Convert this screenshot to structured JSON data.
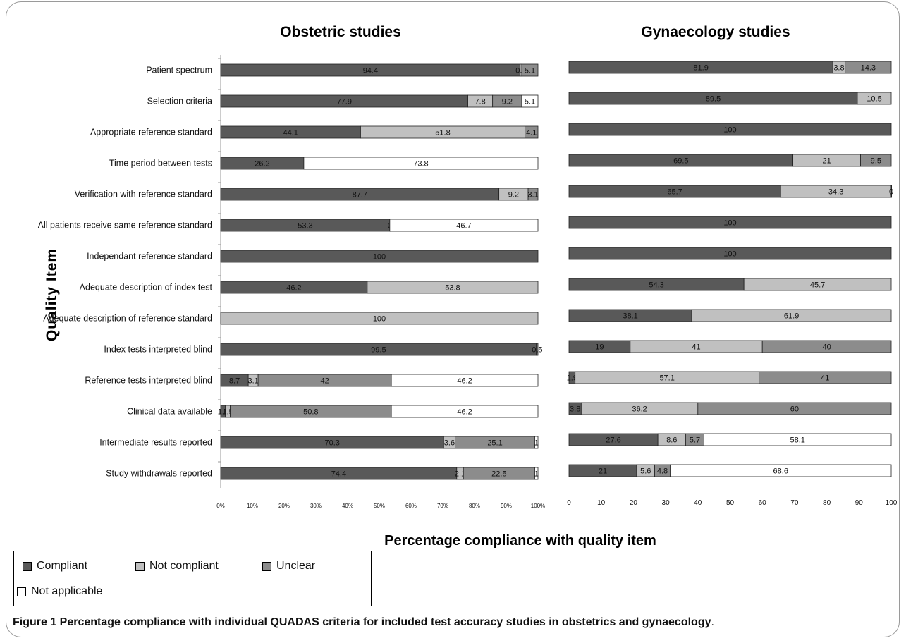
{
  "caption": {
    "label": "Figure 1",
    "text": " Percentage compliance with individual QUADAS criteria for included test accuracy studies in obstetrics and gynaecology",
    "end": "."
  },
  "y_axis_title": "Quality Item",
  "x_axis_title": "Percentage compliance with quality item",
  "legend": [
    {
      "name": "Compliant",
      "color": "#595959"
    },
    {
      "name": "Not compliant",
      "color": "#c0c0c0"
    },
    {
      "name": "Unclear",
      "color": "#8c8c8c"
    },
    {
      "name": "Not applicable",
      "color": "#ffffff"
    }
  ],
  "chart_data": [
    {
      "type": "bar",
      "orientation": "horizontal",
      "stacked": true,
      "title": "Obstetric studies",
      "xlim": [
        0,
        100
      ],
      "ticks": [
        "0%",
        "10%",
        "20%",
        "30%",
        "40%",
        "50%",
        "60%",
        "70%",
        "80%",
        "90%",
        "100%"
      ],
      "categories": [
        "Patient spectrum",
        "Selection criteria",
        "Appropriate reference standard",
        "Time period between tests",
        "Verification with reference standard",
        "All patients receive same reference standard",
        "Independant reference standard",
        "Adequate description of index test",
        "Adequate description of reference standard",
        "Index tests interpreted blind",
        "Reference tests interpreted blind",
        "Clinical data available",
        "Intermediate results reported",
        "Study withdrawals reported"
      ],
      "series": [
        {
          "name": "Compliant",
          "values": [
            94.4,
            77.9,
            44.1,
            26.2,
            87.7,
            53.3,
            100,
            46.2,
            0,
            99.5,
            8.7,
            1.5,
            70.3,
            74.4
          ]
        },
        {
          "name": "Not compliant",
          "values": [
            0.5,
            7.8,
            51.8,
            0,
            9.2,
            0,
            0,
            53.8,
            100,
            0,
            3.1,
            1.5,
            3.6,
            2.1
          ]
        },
        {
          "name": "Unclear",
          "values": [
            5.1,
            9.2,
            4.1,
            0,
            3.1,
            0,
            0,
            0,
            0,
            0.5,
            42,
            50.8,
            25.1,
            22.5
          ]
        },
        {
          "name": "Not applicable",
          "values": [
            0,
            5.1,
            0,
            73.8,
            0,
            46.7,
            0,
            0,
            0,
            0,
            46.2,
            46.2,
            1,
            1
          ]
        }
      ],
      "labels": [
        [
          [
            "94.4",
            "0.5",
            "5.1"
          ]
        ],
        [
          [
            "77.9",
            "7.8",
            "9.2",
            "5.1"
          ]
        ],
        [
          [
            "44.1",
            "51.8",
            "4.1"
          ]
        ],
        [
          [
            "26.2",
            "73.8"
          ]
        ],
        [
          [
            "87.7",
            "9.2",
            "3.1"
          ]
        ],
        [
          [
            "53.3",
            "0",
            "46.7"
          ]
        ],
        [
          [
            "100"
          ]
        ],
        [
          [
            "46.2",
            "53.8"
          ]
        ],
        [
          [
            "100"
          ]
        ],
        [
          [
            "99.5",
            "0.5"
          ]
        ],
        [
          [
            "8.7",
            "3.1",
            "42",
            "46.2"
          ]
        ],
        [
          [
            "1.5",
            "1.5",
            "50.8",
            "46.2"
          ]
        ],
        [
          [
            "70.3",
            "3.6",
            "25.1",
            "1"
          ]
        ],
        [
          [
            "74.4",
            "2.1",
            "22.5",
            "1"
          ]
        ]
      ]
    },
    {
      "type": "bar",
      "orientation": "horizontal",
      "stacked": true,
      "title": "Gynaecology studies",
      "xlim": [
        0,
        100
      ],
      "ticks": [
        "0",
        "10",
        "20",
        "30",
        "40",
        "50",
        "60",
        "70",
        "80",
        "90",
        "100"
      ],
      "categories": [
        "Patient spectrum",
        "Selection criteria",
        "Appropriate reference standard",
        "Time period between tests",
        "Verification with reference standard",
        "All patients receive same reference standard",
        "Independant reference standard",
        "Adequate description of index test",
        "Adequate description of reference standard",
        "Index tests interpreted blind",
        "Reference tests interpreted blind",
        "Clinical data available",
        "Intermediate results reported",
        "Study withdrawals reported"
      ],
      "series": [
        {
          "name": "Compliant",
          "values": [
            81.9,
            89.5,
            100,
            69.5,
            65.7,
            100,
            100,
            54.3,
            38.1,
            19,
            1.9,
            3.8,
            27.6,
            21
          ]
        },
        {
          "name": "Not compliant",
          "values": [
            3.8,
            10.5,
            0,
            21,
            34.3,
            0,
            0,
            45.7,
            61.9,
            41,
            57.1,
            36.2,
            8.6,
            5.6
          ]
        },
        {
          "name": "Unclear",
          "values": [
            14.3,
            0,
            0,
            9.5,
            0,
            0,
            0,
            0,
            0,
            40,
            41,
            60,
            5.7,
            4.8
          ]
        },
        {
          "name": "Not applicable",
          "values": [
            0,
            0,
            0,
            0,
            0,
            0,
            0,
            0,
            0,
            0,
            0,
            0,
            58.1,
            68.6
          ]
        }
      ],
      "labels": [
        [
          [
            "81.9",
            "3.8",
            "14.3"
          ]
        ],
        [
          [
            "89.5",
            "10.5"
          ]
        ],
        [
          [
            "100"
          ]
        ],
        [
          [
            "69.5",
            "21",
            "9.5"
          ]
        ],
        [
          [
            "65.7",
            "34.3",
            "0"
          ]
        ],
        [
          [
            "100"
          ]
        ],
        [
          [
            "100"
          ]
        ],
        [
          [
            "54.3",
            "45.7"
          ]
        ],
        [
          [
            "38.1",
            "61.9"
          ]
        ],
        [
          [
            "19",
            "41",
            "40"
          ]
        ],
        [
          [
            "1.9",
            "57.1",
            "41"
          ]
        ],
        [
          [
            "3.8",
            "36.2",
            "60"
          ]
        ],
        [
          [
            "27.6",
            "8.6",
            "5.7",
            "58.1"
          ]
        ],
        [
          [
            "21",
            "5.6",
            "4.8",
            "68.6"
          ]
        ]
      ]
    }
  ]
}
